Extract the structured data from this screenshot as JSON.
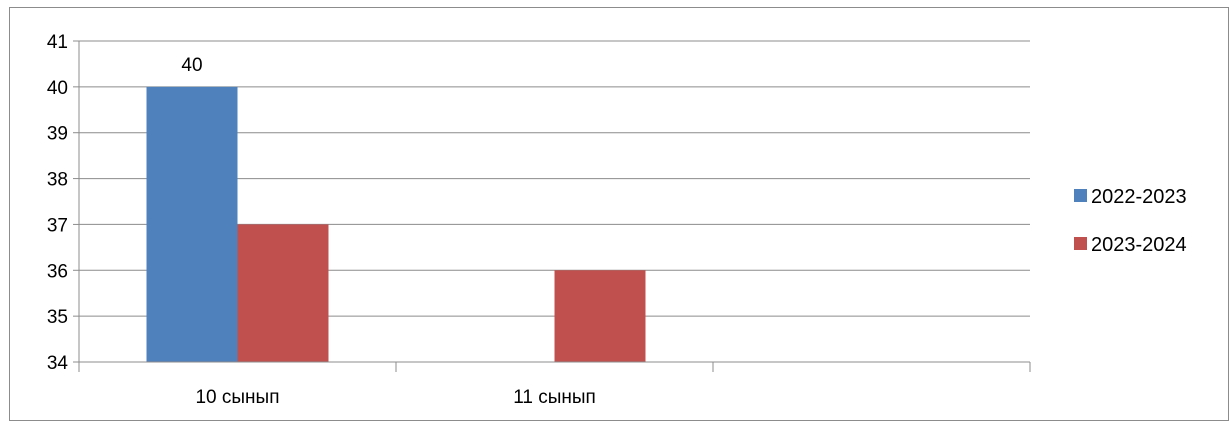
{
  "chart_data": {
    "type": "bar",
    "title": "",
    "xlabel": "",
    "ylabel": "",
    "categories": [
      "10 сынып",
      "11 сынып",
      ""
    ],
    "series": [
      {
        "name": "2022-2023",
        "color": "#4f81bd",
        "values": [
          40,
          null,
          null
        ],
        "data_labels": [
          "40",
          null,
          null
        ]
      },
      {
        "name": "2023-2024",
        "color": "#c0504d",
        "values": [
          37,
          36,
          null
        ],
        "data_labels": [
          null,
          null,
          null
        ]
      }
    ],
    "ylim": [
      34,
      41
    ],
    "yticks": [
      34,
      35,
      36,
      37,
      38,
      39,
      40,
      41
    ],
    "ytick_labels": [
      "34",
      "35",
      "36",
      "37",
      "38",
      "39",
      "40",
      "41"
    ],
    "grid": true,
    "legend_position": "right"
  }
}
